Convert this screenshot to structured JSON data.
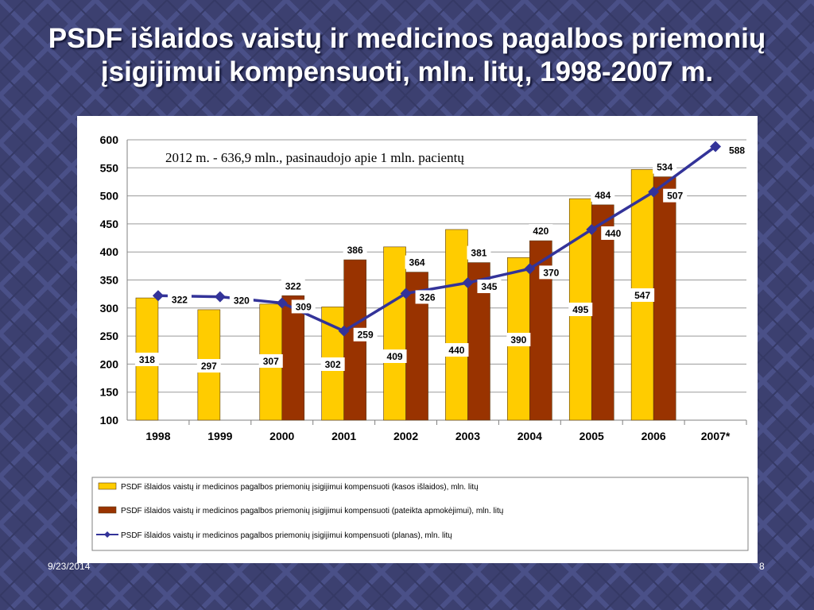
{
  "slide": {
    "title": "PSDF išlaidos vaistų ir medicinos pagalbos priemonių įsigijimui kompensuoti, mln. litų, 1998-2007 m.",
    "footer_date": "9/23/2014",
    "page_number": "8",
    "background_color": "#3c4070"
  },
  "chart_data": {
    "type": "bar",
    "annotation": "2012 m. - 636,9  mln., pasinaudojo apie 1 mln. pacientų",
    "categories": [
      "1998",
      "1999",
      "2000",
      "2001",
      "2002",
      "2003",
      "2004",
      "2005",
      "2006",
      "2007*"
    ],
    "ylim": [
      100,
      600
    ],
    "yticks": [
      100,
      150,
      200,
      250,
      300,
      350,
      400,
      450,
      500,
      550,
      600
    ],
    "grid": true,
    "legend_position": "bottom",
    "series": [
      {
        "name": "PSDF išlaidos vaistų ir medicinos pagalbos priemonių įsigijimui kompensuoti (kasos išlaidos), mln. litų",
        "kind": "bar",
        "color": "#ffcc00",
        "values": [
          318,
          297,
          307,
          302,
          409,
          440,
          390,
          495,
          547,
          null
        ]
      },
      {
        "name": "PSDF išlaidos vaistų ir medicinos pagalbos priemonių įsigijimui kompensuoti  (pateikta apmokėjimui), mln. litų",
        "kind": "bar",
        "color": "#993300",
        "values": [
          null,
          null,
          322,
          386,
          364,
          381,
          420,
          484,
          534,
          null
        ]
      },
      {
        "name": "PSDF išlaidos vaistų ir medicinos pagalbos priemonių įsigijimui kompensuoti (planas), mln. litų",
        "kind": "line",
        "color": "#333399",
        "values": [
          322,
          320,
          309,
          259,
          326,
          345,
          370,
          440,
          507,
          588
        ]
      }
    ]
  }
}
